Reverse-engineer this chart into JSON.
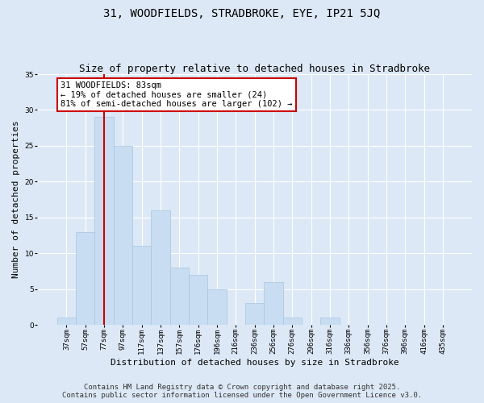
{
  "title": "31, WOODFIELDS, STRADBROKE, EYE, IP21 5JQ",
  "subtitle": "Size of property relative to detached houses in Stradbroke",
  "xlabel": "Distribution of detached houses by size in Stradbroke",
  "ylabel": "Number of detached properties",
  "bar_labels": [
    "37sqm",
    "57sqm",
    "77sqm",
    "97sqm",
    "117sqm",
    "137sqm",
    "157sqm",
    "176sqm",
    "196sqm",
    "216sqm",
    "236sqm",
    "256sqm",
    "276sqm",
    "296sqm",
    "316sqm",
    "336sqm",
    "356sqm",
    "376sqm",
    "396sqm",
    "416sqm",
    "435sqm"
  ],
  "bar_values": [
    1,
    13,
    29,
    25,
    11,
    16,
    8,
    7,
    5,
    0,
    3,
    6,
    1,
    0,
    1,
    0,
    0,
    0,
    0,
    0,
    0
  ],
  "bar_color": "#c9ddf2",
  "bar_edge_color": "#a8c4e0",
  "background_color": "#dce8f5",
  "grid_color": "#ffffff",
  "vline_x": 2,
  "vline_color": "#cc0000",
  "annotation_text": "31 WOODFIELDS: 83sqm\n← 19% of detached houses are smaller (24)\n81% of semi-detached houses are larger (102) →",
  "annotation_box_color": "#ffffff",
  "annotation_box_edge": "#cc0000",
  "ylim": [
    0,
    35
  ],
  "yticks": [
    0,
    5,
    10,
    15,
    20,
    25,
    30,
    35
  ],
  "footer_line1": "Contains HM Land Registry data © Crown copyright and database right 2025.",
  "footer_line2": "Contains public sector information licensed under the Open Government Licence v3.0.",
  "title_fontsize": 10,
  "subtitle_fontsize": 9,
  "axis_label_fontsize": 8,
  "tick_fontsize": 6.5,
  "annotation_fontsize": 7.5,
  "footer_fontsize": 6.5,
  "ylabel_fontsize": 8
}
